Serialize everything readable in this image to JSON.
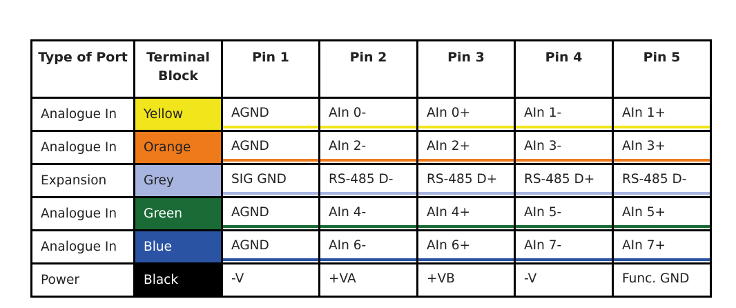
{
  "table": {
    "header": [
      "Type of Port",
      "Terminal Block",
      "Pin 1",
      "Pin 2",
      "Pin 3",
      "Pin 4",
      "Pin 5"
    ],
    "rows": [
      {
        "cells": [
          "Analogue In",
          "Yellow",
          "AGND",
          "AIn 0-",
          "AIn 0+",
          "AIn 1-",
          "AIn 1+"
        ],
        "color": "#f1e51b",
        "text_color": "#222222"
      },
      {
        "cells": [
          "Analogue In",
          "Orange",
          "AGND",
          "AIn 2-",
          "AIn 2+",
          "AIn 3-",
          "AIn 3+"
        ],
        "color": "#ee7a1a",
        "text_color": "#222222"
      },
      {
        "cells": [
          "Expansion",
          "Grey",
          "SIG GND",
          "RS-485 D-",
          "RS-485 D+",
          "RS-485 D+",
          "RS-485 D-"
        ],
        "color": "#a8b5e0",
        "text_color": "#222222"
      },
      {
        "cells": [
          "Analogue In",
          "Green",
          "AGND",
          "AIn 4-",
          "AIn 4+",
          "AIn 5-",
          "AIn 5+"
        ],
        "color": "#1a6b35",
        "text_color": "#ffffff"
      },
      {
        "cells": [
          "Analogue In",
          "Blue",
          "AGND",
          "AIn 6-",
          "AIn 6+",
          "AIn 7-",
          "AIn 7+"
        ],
        "color": "#2b53a3",
        "text_color": "#ffffff"
      },
      {
        "cells": [
          "Power",
          "Black",
          "-V",
          "+VA",
          "+VB",
          "-V",
          "Func. GND"
        ],
        "color": "#000000",
        "text_color": "#ffffff"
      }
    ]
  }
}
